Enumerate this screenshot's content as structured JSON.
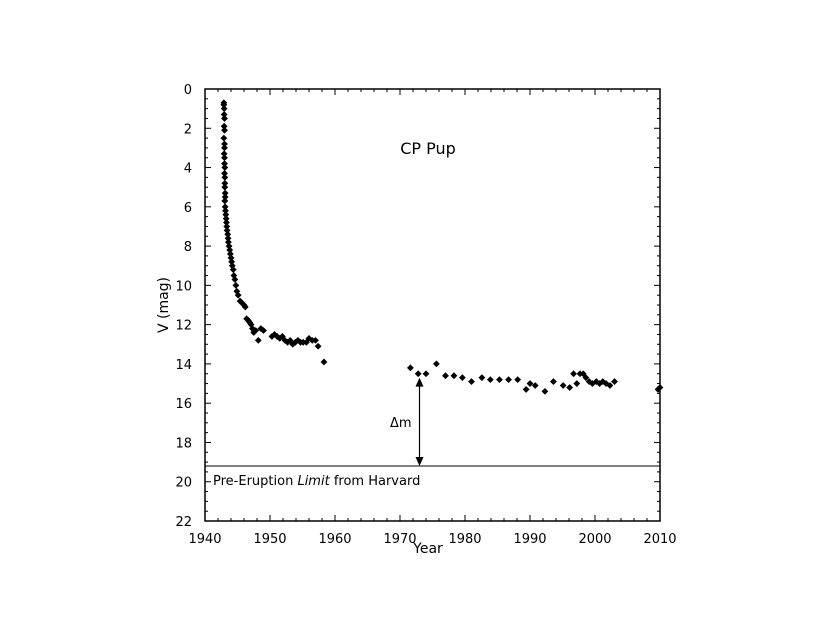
{
  "chart_data": {
    "type": "scatter",
    "title": "CP Pup",
    "xlabel": "Year",
    "ylabel": "V (mag)",
    "xlim": [
      1940,
      2010
    ],
    "ylim": [
      0,
      22
    ],
    "y_inverted": true,
    "x_ticks": [
      "1940",
      "1950",
      "1960",
      "1970",
      "1980",
      "1990",
      "2000",
      "2010"
    ],
    "y_ticks": [
      "0",
      "2",
      "4",
      "6",
      "8",
      "10",
      "12",
      "14",
      "16",
      "18",
      "20",
      "22"
    ],
    "grid": false,
    "marker": "diamond",
    "marker_color": "#000000",
    "annotations": {
      "delta_label": "Δm",
      "delta_m_x": 1973.0,
      "delta_m_top": 14.7,
      "delta_m_bottom": 19.2,
      "limit_value": 19.2,
      "limit_text_before": "Pre-Eruption ",
      "limit_text_italic": "Limit",
      "limit_text_after": " from Harvard"
    },
    "points": [
      [
        1942.9,
        0.7
      ],
      [
        1942.9,
        0.8
      ],
      [
        1942.95,
        1.0
      ],
      [
        1942.95,
        1.3
      ],
      [
        1943.0,
        1.5
      ],
      [
        1942.95,
        1.9
      ],
      [
        1943.0,
        2.1
      ],
      [
        1942.9,
        2.5
      ],
      [
        1943.0,
        2.8
      ],
      [
        1943.0,
        3.0
      ],
      [
        1942.95,
        3.3
      ],
      [
        1943.0,
        3.5
      ],
      [
        1943.0,
        3.8
      ],
      [
        1943.05,
        4.0
      ],
      [
        1943.0,
        4.3
      ],
      [
        1943.05,
        4.5
      ],
      [
        1943.05,
        4.8
      ],
      [
        1943.05,
        5.0
      ],
      [
        1943.1,
        5.3
      ],
      [
        1943.1,
        5.5
      ],
      [
        1943.05,
        5.7
      ],
      [
        1943.1,
        6.0
      ],
      [
        1943.15,
        6.2
      ],
      [
        1943.2,
        6.4
      ],
      [
        1943.25,
        6.6
      ],
      [
        1943.3,
        6.8
      ],
      [
        1943.35,
        7.0
      ],
      [
        1943.4,
        7.2
      ],
      [
        1943.5,
        7.4
      ],
      [
        1943.55,
        7.6
      ],
      [
        1943.6,
        7.8
      ],
      [
        1943.7,
        8.0
      ],
      [
        1943.8,
        8.2
      ],
      [
        1943.9,
        8.4
      ],
      [
        1944.0,
        8.6
      ],
      [
        1944.1,
        8.8
      ],
      [
        1944.2,
        9.0
      ],
      [
        1944.35,
        9.2
      ],
      [
        1944.45,
        9.5
      ],
      [
        1944.6,
        9.7
      ],
      [
        1944.75,
        10.0
      ],
      [
        1944.9,
        10.3
      ],
      [
        1945.1,
        10.5
      ],
      [
        1945.4,
        10.8
      ],
      [
        1945.7,
        10.9
      ],
      [
        1946.0,
        11.0
      ],
      [
        1946.2,
        11.1
      ],
      [
        1946.4,
        11.7
      ],
      [
        1946.7,
        11.8
      ],
      [
        1946.9,
        11.9
      ],
      [
        1947.1,
        12.0
      ],
      [
        1947.3,
        12.2
      ],
      [
        1947.5,
        12.4
      ],
      [
        1947.8,
        12.3
      ],
      [
        1948.2,
        12.8
      ],
      [
        1948.6,
        12.2
      ],
      [
        1949.0,
        12.3
      ],
      [
        1950.3,
        12.6
      ],
      [
        1950.7,
        12.5
      ],
      [
        1951.1,
        12.6
      ],
      [
        1951.5,
        12.7
      ],
      [
        1951.9,
        12.6
      ],
      [
        1952.3,
        12.8
      ],
      [
        1952.7,
        12.9
      ],
      [
        1953.1,
        12.8
      ],
      [
        1953.5,
        13.0
      ],
      [
        1953.9,
        12.9
      ],
      [
        1954.3,
        12.8
      ],
      [
        1954.7,
        12.9
      ],
      [
        1955.1,
        12.9
      ],
      [
        1955.6,
        12.9
      ],
      [
        1956.0,
        12.7
      ],
      [
        1956.5,
        12.8
      ],
      [
        1957.0,
        12.8
      ],
      [
        1957.4,
        13.1
      ],
      [
        1958.3,
        13.9
      ],
      [
        1971.6,
        14.2
      ],
      [
        1972.8,
        14.5
      ],
      [
        1974.0,
        14.5
      ],
      [
        1975.6,
        14.0
      ],
      [
        1977.0,
        14.6
      ],
      [
        1978.3,
        14.6
      ],
      [
        1979.6,
        14.7
      ],
      [
        1981.0,
        14.9
      ],
      [
        1982.6,
        14.7
      ],
      [
        1983.9,
        14.8
      ],
      [
        1985.3,
        14.8
      ],
      [
        1986.7,
        14.8
      ],
      [
        1988.1,
        14.8
      ],
      [
        1989.4,
        15.3
      ],
      [
        1990.0,
        15.0
      ],
      [
        1990.8,
        15.1
      ],
      [
        1992.3,
        15.4
      ],
      [
        1993.6,
        14.9
      ],
      [
        1995.1,
        15.1
      ],
      [
        1996.1,
        15.2
      ],
      [
        1996.7,
        14.5
      ],
      [
        1997.2,
        15.0
      ],
      [
        1997.7,
        14.5
      ],
      [
        1998.2,
        14.5
      ],
      [
        1998.6,
        14.7
      ],
      [
        1999.1,
        14.9
      ],
      [
        1999.6,
        15.0
      ],
      [
        2000.2,
        14.9
      ],
      [
        2000.7,
        15.0
      ],
      [
        2001.2,
        14.9
      ],
      [
        2001.7,
        15.0
      ],
      [
        2002.3,
        15.1
      ],
      [
        2003.0,
        14.9
      ],
      [
        2009.7,
        15.3
      ],
      [
        2010.0,
        15.2
      ]
    ]
  }
}
